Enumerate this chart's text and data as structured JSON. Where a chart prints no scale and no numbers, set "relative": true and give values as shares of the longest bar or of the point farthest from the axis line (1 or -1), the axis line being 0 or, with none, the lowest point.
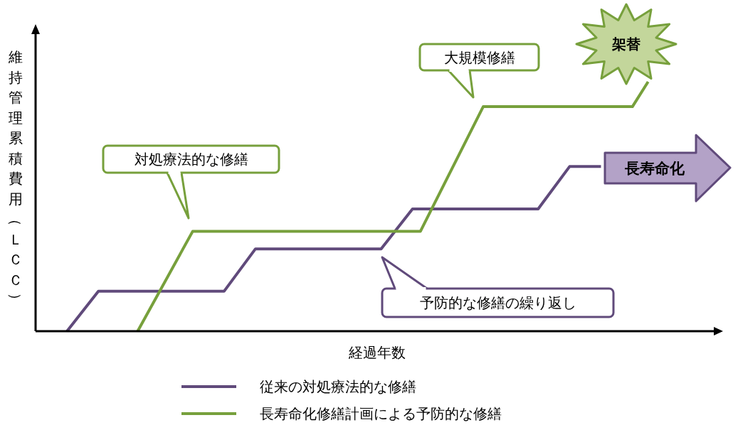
{
  "chart_data": {
    "type": "line",
    "relative": true,
    "xlabel": "経過年数",
    "ylabel": "維持管理累積費用（ＬＣＣ）",
    "legend": "bottom",
    "line_style": "solid",
    "categories": [
      null,
      null,
      null,
      null,
      null,
      null,
      null,
      null,
      null,
      null,
      null,
      null,
      null,
      null,
      null,
      null,
      null,
      null,
      null,
      null,
      null,
      null,
      null,
      null,
      null,
      null,
      null,
      null,
      null,
      null,
      null,
      null,
      null,
      null,
      null,
      null,
      null,
      null,
      null,
      null,
      null,
      null,
      null,
      null,
      null,
      null,
      null,
      null,
      null,
      null,
      null,
      null,
      null,
      null,
      null,
      null,
      null,
      null,
      null,
      null,
      null,
      null,
      null,
      null,
      null,
      null,
      null,
      null,
      null,
      null,
      null,
      null,
      null,
      null,
      null,
      null,
      null,
      null,
      null,
      null,
      null,
      null,
      null,
      null,
      null,
      null,
      null,
      null
    ],
    "series": [
      {
        "name": "従来の対処療法的な修繕",
        "color": "#604a7b",
        "values": [
          null,
          null,
          null,
          null,
          0,
          null,
          null,
          null,
          0.16,
          null,
          null,
          null,
          null,
          null,
          null,
          null,
          null,
          null,
          null,
          null,
          null,
          null,
          null,
          null,
          0.16,
          null,
          null,
          null,
          0.33,
          null,
          null,
          null,
          null,
          null,
          null,
          null,
          null,
          null,
          null,
          null,
          null,
          null,
          null,
          null,
          0.33,
          null,
          null,
          null,
          0.49,
          null,
          null,
          null,
          null,
          null,
          null,
          null,
          null,
          null,
          null,
          null,
          null,
          null,
          null,
          null,
          0.49,
          null,
          null,
          null,
          0.66,
          null,
          null,
          null,
          0.66,
          null,
          null,
          null,
          null,
          null,
          null,
          null,
          null,
          null,
          null,
          null,
          null,
          null,
          null,
          null
        ]
      },
      {
        "name": "長寿命化修繕計画による予防的な修繕",
        "color": "#77a03c",
        "values": [
          null,
          null,
          null,
          null,
          null,
          null,
          null,
          null,
          null,
          null,
          null,
          null,
          null,
          0,
          null,
          null,
          null,
          null,
          null,
          null,
          0.4,
          null,
          null,
          null,
          null,
          null,
          null,
          null,
          null,
          null,
          null,
          null,
          null,
          null,
          null,
          null,
          null,
          null,
          null,
          null,
          null,
          null,
          null,
          null,
          null,
          null,
          null,
          null,
          null,
          0.4,
          null,
          null,
          null,
          null,
          null,
          null,
          null,
          0.9,
          null,
          null,
          null,
          null,
          null,
          null,
          null,
          null,
          null,
          null,
          null,
          null,
          null,
          null,
          null,
          null,
          null,
          null,
          0.9,
          null,
          1,
          null,
          null,
          null,
          null,
          null,
          null,
          null,
          null,
          null
        ]
      }
    ],
    "annotations": [
      "対処療法的な修繕",
      "大規模修繕",
      "予防的な修繕の繰り返し",
      "長寿命化",
      "架替"
    ]
  }
}
